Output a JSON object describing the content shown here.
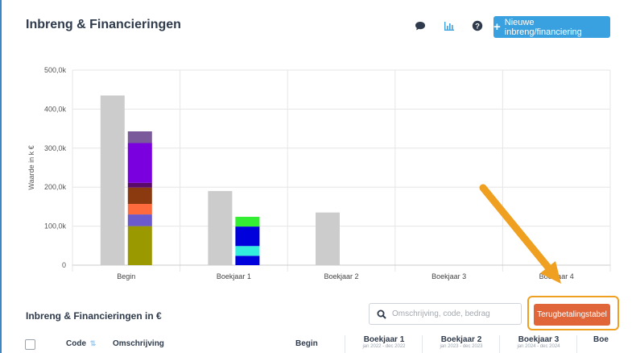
{
  "header": {
    "title": "Inbreng & Financieringen",
    "new_button_label": "Nieuwe inbreng/financiering",
    "icons": [
      "comment-icon",
      "bar-chart-icon",
      "help-icon"
    ]
  },
  "chart_data": {
    "type": "bar",
    "categories": [
      "Begin",
      "Boekjaar 1",
      "Boekjaar 2",
      "Boekjaar 3",
      "Boekjaar 4"
    ],
    "ylabel": "Waarde in k €",
    "ylim": [
      0,
      500
    ],
    "yticks": [
      "0",
      "100,0k",
      "200,0k",
      "300,0k",
      "400,0k",
      "500,0k"
    ],
    "grid": true,
    "gray_series": [
      435,
      190,
      135,
      0,
      0
    ],
    "stacked_series": [
      [
        {
          "value": 100,
          "color": "#9a9a00"
        },
        {
          "value": 30,
          "color": "#6a5acd"
        },
        {
          "value": 27,
          "color": "#ff6a3d"
        },
        {
          "value": 42,
          "color": "#8b3a10"
        },
        {
          "value": 12,
          "color": "#5a0a6a"
        },
        {
          "value": 102,
          "color": "#7b00e0"
        },
        {
          "value": 30,
          "color": "#7a5a9a"
        }
      ],
      [
        {
          "value": 24,
          "color": "#0000dd"
        },
        {
          "value": 25,
          "color": "#33eedd"
        },
        {
          "value": 50,
          "color": "#0000dd"
        },
        {
          "value": 25,
          "color": "#33ee33"
        }
      ],
      [],
      [],
      []
    ],
    "colors": {
      "gray": "#cccccc"
    }
  },
  "arrow_color": "#f0a020",
  "section": {
    "title": "Inbreng & Financieringen in €",
    "search_placeholder": "Omschrijving, code, bedrag",
    "repay_button_label": "Terugbetalingstabel"
  },
  "table": {
    "columns": {
      "code": "Code",
      "description": "Omschrijving",
      "begin": "Begin"
    },
    "years": [
      {
        "label": "Boekjaar 1",
        "range": "jan 2022 - dec 2022"
      },
      {
        "label": "Boekjaar 2",
        "range": "jan 2023 - dec 2023"
      },
      {
        "label": "Boekjaar 3",
        "range": "jan 2024 - dec 2024"
      },
      {
        "label": "Boe",
        "range": ""
      }
    ]
  }
}
